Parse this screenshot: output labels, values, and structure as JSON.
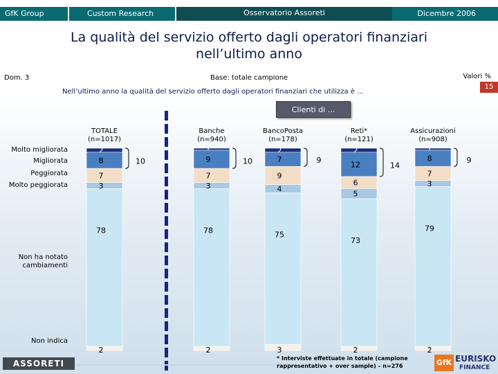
{
  "header": {
    "brand": "GfK Group",
    "section": "Custom Research",
    "observatory": "Osservatorio Assoreti",
    "date": "Dicembre 2006"
  },
  "title": "La qualità del servizio offerto dagli operatori finanziari nell’ultimo anno",
  "question_id": "Dom. 3",
  "base": "Base: totale campione",
  "values_unit": "Valori %",
  "subtitle": "Nell’ultimo anno la qualità del servizio offerto dagli operatori finanziari che utilizza è ...",
  "badge": "15",
  "clients_label": "Clienti di ...",
  "footnote_line1": "* Interviste effettuate in totale (campione",
  "footnote_line2": "rappresentativo + over sample) – n=276",
  "logos": {
    "assoreti": "ASSORETI",
    "gfk": "GfK",
    "eurisko": "EURISKO",
    "eurisko_sub": "FINANCE"
  },
  "colors": {
    "header_teal": "#0a6a72",
    "header_dark": "#0f4d52",
    "molto_migliorata": "#1c2f7a",
    "migliorata": "#4a7fc1",
    "peggiorata": "#f2ddc6",
    "molto_peggiorata": "#a8c8e4",
    "non_ha_notato": "#c9e6f4",
    "non_indica": "#f6f1e6",
    "separator": "#1a237e"
  },
  "chart_data": {
    "type": "bar",
    "stacked": true,
    "title": "La qualità del servizio offerto dagli operatori finanziari nell’ultimo anno",
    "ylabel": "Valori %",
    "categories": [
      {
        "name": "TOTALE",
        "n": "(n=1017)"
      },
      {
        "name": "Banche",
        "n": "(n=940)"
      },
      {
        "name": "BancoPosta",
        "n": "(n=178)"
      },
      {
        "name": "Reti*",
        "n": "(n=121)"
      },
      {
        "name": "Assicurazioni",
        "n": "(n=908)"
      }
    ],
    "series": [
      {
        "name": "Molto migliorata",
        "values": [
          2,
          1,
          2,
          2,
          1
        ]
      },
      {
        "name": "Migliorata",
        "values": [
          8,
          9,
          7,
          12,
          8
        ]
      },
      {
        "name": "Peggiorata",
        "values": [
          7,
          7,
          9,
          6,
          7
        ]
      },
      {
        "name": "Molto peggiorata",
        "values": [
          3,
          3,
          4,
          5,
          3
        ]
      },
      {
        "name": "Non ha notato cambiamenti",
        "values": [
          78,
          78,
          75,
          73,
          79
        ]
      },
      {
        "name": "Non indica",
        "values": [
          2,
          2,
          3,
          2,
          2
        ]
      }
    ],
    "improved_totals": [
      10,
      10,
      9,
      14,
      9
    ],
    "row_labels": [
      "Molto migliorata",
      "Migliorata",
      "Peggiorata",
      "Molto peggiorata",
      "Non ha notato cambiamenti",
      "Non indica"
    ],
    "ylim": [
      0,
      100
    ]
  }
}
